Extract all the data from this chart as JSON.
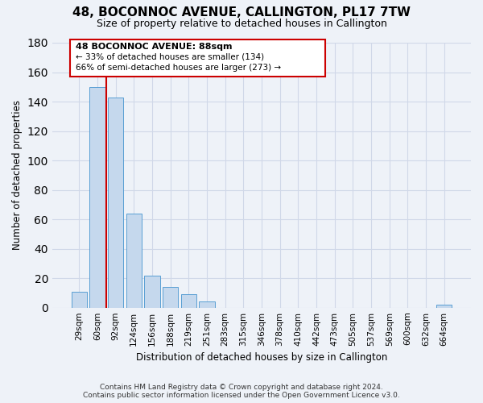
{
  "title": "48, BOCONNOC AVENUE, CALLINGTON, PL17 7TW",
  "subtitle": "Size of property relative to detached houses in Callington",
  "xlabel": "Distribution of detached houses by size in Callington",
  "ylabel": "Number of detached properties",
  "bar_labels": [
    "29sqm",
    "60sqm",
    "92sqm",
    "124sqm",
    "156sqm",
    "188sqm",
    "219sqm",
    "251sqm",
    "283sqm",
    "315sqm",
    "346sqm",
    "378sqm",
    "410sqm",
    "442sqm",
    "473sqm",
    "505sqm",
    "537sqm",
    "569sqm",
    "600sqm",
    "632sqm",
    "664sqm"
  ],
  "bar_values": [
    11,
    150,
    143,
    64,
    22,
    14,
    9,
    4,
    0,
    0,
    0,
    0,
    0,
    0,
    0,
    0,
    0,
    0,
    0,
    0,
    2
  ],
  "bar_color": "#c5d8ed",
  "bar_edge_color": "#5a9fd4",
  "grid_color": "#d0d8e8",
  "background_color": "#eef2f8",
  "annotation_box_color": "#ffffff",
  "annotation_box_edge_color": "#cc0000",
  "vline_color": "#cc0000",
  "vline_x": 1.5,
  "ylim": [
    0,
    180
  ],
  "yticks": [
    0,
    20,
    40,
    60,
    80,
    100,
    120,
    140,
    160,
    180
  ],
  "annotation_title": "48 BOCONNOC AVENUE: 88sqm",
  "annotation_line1": "← 33% of detached houses are smaller (134)",
  "annotation_line2": "66% of semi-detached houses are larger (273) →",
  "footer_line1": "Contains HM Land Registry data © Crown copyright and database right 2024.",
  "footer_line2": "Contains public sector information licensed under the Open Government Licence v3.0."
}
